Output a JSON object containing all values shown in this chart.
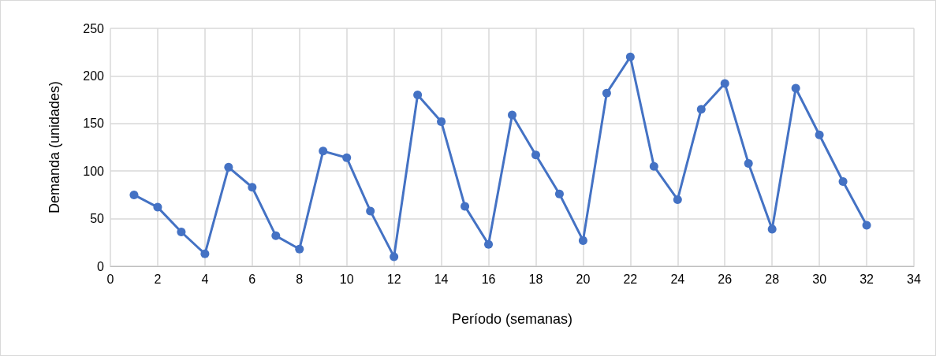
{
  "chart_data": {
    "type": "line",
    "xlabel": "Período (semanas)",
    "ylabel": "Demanda (unidades)",
    "x": [
      1,
      2,
      3,
      4,
      5,
      6,
      7,
      8,
      9,
      10,
      11,
      12,
      13,
      14,
      15,
      16,
      17,
      18,
      19,
      20,
      21,
      22,
      23,
      24,
      25,
      26,
      27,
      28,
      29,
      30,
      31,
      32
    ],
    "series": [
      {
        "color": "#4472c4",
        "values": [
          75,
          62,
          36,
          13,
          104,
          83,
          32,
          18,
          121,
          114,
          58,
          10,
          180,
          152,
          63,
          23,
          159,
          117,
          76,
          27,
          182,
          220,
          105,
          70,
          165,
          192,
          108,
          39,
          187,
          138,
          89,
          43
        ]
      }
    ],
    "xlim": [
      0,
      34
    ],
    "xticks": [
      0,
      2,
      4,
      6,
      8,
      10,
      12,
      14,
      16,
      18,
      20,
      22,
      24,
      26,
      28,
      30,
      32,
      34
    ],
    "ylim": [
      0,
      250
    ],
    "yticks": [
      0,
      50,
      100,
      150,
      200,
      250
    ],
    "grid": true,
    "marker": "circle",
    "line_style": "solid"
  }
}
